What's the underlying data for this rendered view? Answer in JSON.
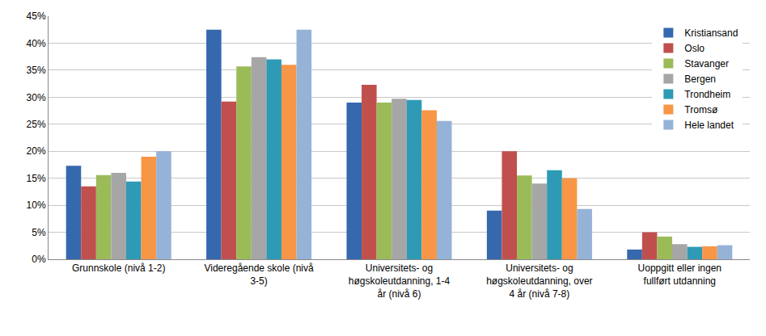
{
  "chart_data": {
    "type": "bar",
    "categories": [
      "Grunnskole (nivå 1-2)",
      "Videregående skole (nivå 3-5)",
      "Universitets- og høgskoleutdanning, 1-4 år (nivå 6)",
      "Universitets- og høgskoleutdanning, over 4 år (nivå 7-8)",
      "Uoppgitt eller ingen fullført utdanning"
    ],
    "series": [
      {
        "name": "Kristiansand",
        "color": "#3668ae",
        "values": [
          17.3,
          42.5,
          29.0,
          9.0,
          1.8
        ]
      },
      {
        "name": "Oslo",
        "color": "#c0504d",
        "values": [
          13.5,
          29.2,
          32.3,
          20.0,
          5.0
        ]
      },
      {
        "name": "Stavanger",
        "color": "#9bbb59",
        "values": [
          15.6,
          35.7,
          29.0,
          15.5,
          4.2
        ]
      },
      {
        "name": "Bergen",
        "color": "#a6a6a6",
        "values": [
          16.0,
          37.4,
          29.7,
          14.0,
          2.8
        ]
      },
      {
        "name": "Trondheim",
        "color": "#2e9ab5",
        "values": [
          14.4,
          37.0,
          29.5,
          16.5,
          2.3
        ]
      },
      {
        "name": "Tromsø",
        "color": "#f79646",
        "values": [
          19.0,
          36.0,
          27.6,
          15.0,
          2.4
        ]
      },
      {
        "name": "Hele landet",
        "color": "#95b3d7",
        "values": [
          20.0,
          42.5,
          25.6,
          9.3,
          2.6
        ]
      }
    ],
    "ylim": [
      0,
      45
    ],
    "yticks": [
      {
        "value": 0,
        "label": "0%"
      },
      {
        "value": 5,
        "label": "5%"
      },
      {
        "value": 10,
        "label": "10%"
      },
      {
        "value": 15,
        "label": "15%"
      },
      {
        "value": 20,
        "label": "20%"
      },
      {
        "value": 25,
        "label": "25%"
      },
      {
        "value": 30,
        "label": "30%"
      },
      {
        "value": 35,
        "label": "35%"
      },
      {
        "value": 40,
        "label": "40%"
      },
      {
        "value": 45,
        "label": "45%"
      }
    ],
    "grid": true,
    "legend": "top right"
  }
}
